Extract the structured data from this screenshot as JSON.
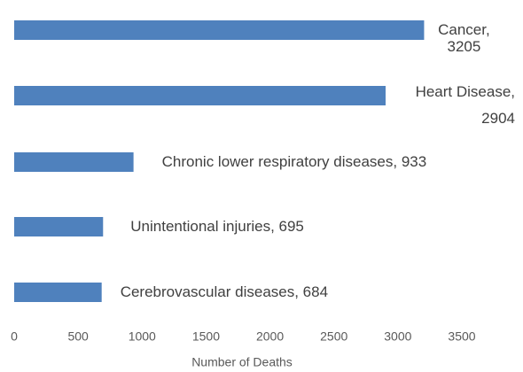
{
  "chart_data": {
    "type": "bar",
    "orientation": "horizontal",
    "x_label": "Number of Deaths",
    "values": [
      3205,
      2904,
      933,
      695,
      684
    ],
    "value_labels": [
      "Cancer, 3205",
      "Heart Disease, 2904",
      "Chronic lower respiratory diseases, 933",
      "Unintentional injuries, 695",
      "Cerebrovascular diseases, 684"
    ],
    "color": "#4f81bd",
    "xlim": [
      0,
      3500
    ],
    "xticks": [
      0,
      500,
      1000,
      1500,
      2000,
      2500,
      3000,
      3500
    ],
    "grid": false
  }
}
